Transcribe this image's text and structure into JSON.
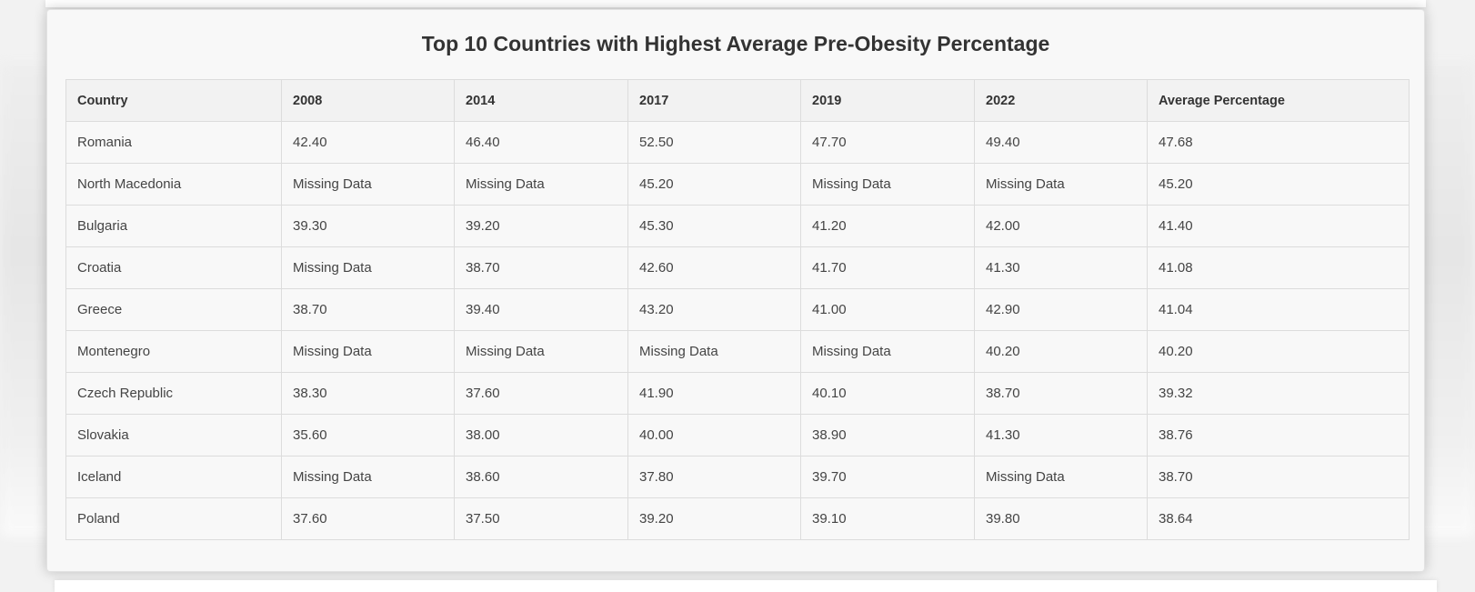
{
  "title": "Top 10 Countries with Highest Average Pre-Obesity Percentage",
  "table": {
    "headers": [
      "Country",
      "2008",
      "2014",
      "2017",
      "2019",
      "2022",
      "Average Percentage"
    ],
    "rows": [
      [
        "Romania",
        "42.40",
        "46.40",
        "52.50",
        "47.70",
        "49.40",
        "47.68"
      ],
      [
        "North Macedonia",
        "Missing Data",
        "Missing Data",
        "45.20",
        "Missing Data",
        "Missing Data",
        "45.20"
      ],
      [
        "Bulgaria",
        "39.30",
        "39.20",
        "45.30",
        "41.20",
        "42.00",
        "41.40"
      ],
      [
        "Croatia",
        "Missing Data",
        "38.70",
        "42.60",
        "41.70",
        "41.30",
        "41.08"
      ],
      [
        "Greece",
        "38.70",
        "39.40",
        "43.20",
        "41.00",
        "42.90",
        "41.04"
      ],
      [
        "Montenegro",
        "Missing Data",
        "Missing Data",
        "Missing Data",
        "Missing Data",
        "40.20",
        "40.20"
      ],
      [
        "Czech Republic",
        "38.30",
        "37.60",
        "41.90",
        "40.10",
        "38.70",
        "39.32"
      ],
      [
        "Slovakia",
        "35.60",
        "38.00",
        "40.00",
        "38.90",
        "41.30",
        "38.76"
      ],
      [
        "Iceland",
        "Missing Data",
        "38.60",
        "37.80",
        "39.70",
        "Missing Data",
        "38.70"
      ],
      [
        "Poland",
        "37.60",
        "37.50",
        "39.20",
        "39.10",
        "39.80",
        "38.64"
      ]
    ]
  }
}
